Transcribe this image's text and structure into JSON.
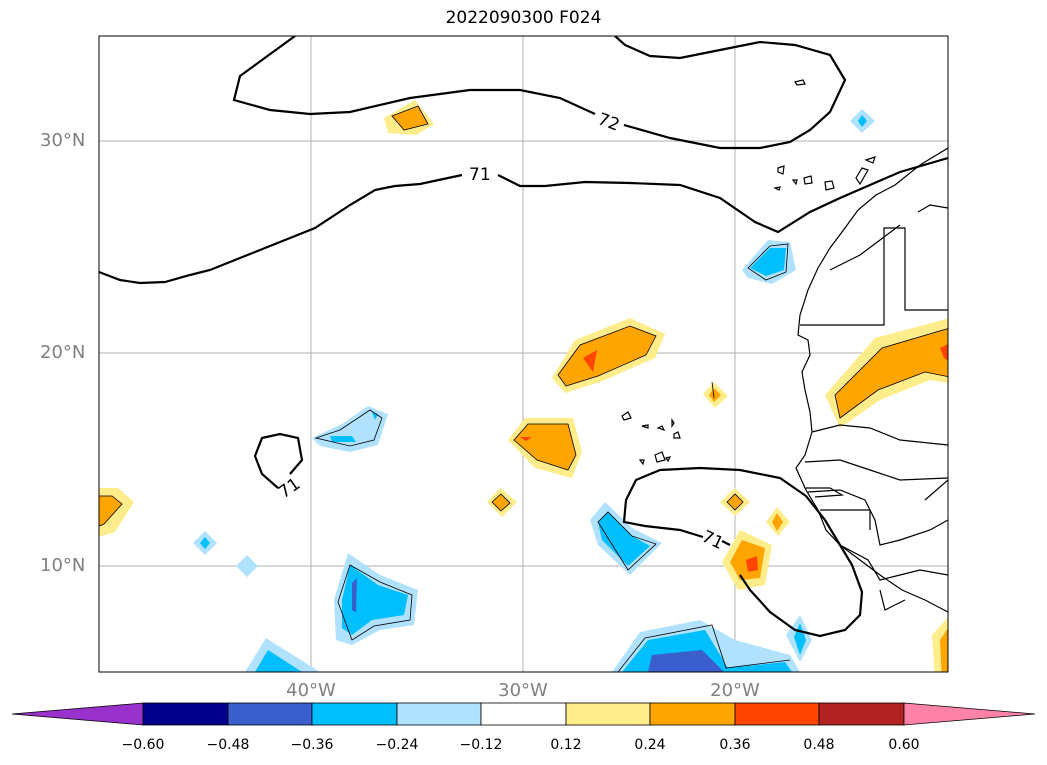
{
  "title": "2022090300 F024",
  "map": {
    "lat_labels": [
      "30°N",
      "20°N",
      "10°N"
    ],
    "lon_labels": [
      "40°W",
      "30°W",
      "20°W"
    ],
    "contour_labels": [
      "72",
      "71",
      "71",
      "71"
    ]
  },
  "colorbar": {
    "ticks": [
      "−0.60",
      "−0.48",
      "−0.36",
      "−0.24",
      "−0.12",
      "0.12",
      "0.24",
      "0.36",
      "0.48",
      "0.60"
    ],
    "colors": [
      "#9932cc",
      "#00008b",
      "#3a5fcd",
      "#00bfff",
      "#b0e2ff",
      "#ffffff",
      "#ffec8b",
      "#ffa500",
      "#ff4500",
      "#b22222",
      "#ff83a8"
    ]
  }
}
